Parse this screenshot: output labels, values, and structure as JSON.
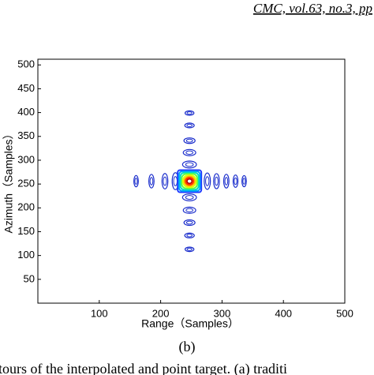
{
  "header": "CMC, vol.63, no.3, pp",
  "chart_data": {
    "type": "contour",
    "xlabel": "Range（Samples）",
    "ylabel": "Azimuth（Samples）",
    "xlim": [
      0,
      500
    ],
    "ylim": [
      0,
      512
    ],
    "xticks": [
      100,
      200,
      300,
      400,
      500
    ],
    "yticks": [
      50,
      100,
      150,
      200,
      250,
      300,
      350,
      400,
      450,
      500
    ],
    "mainlobe": {
      "x": 247,
      "y": 256,
      "colors": [
        "#1f3cff",
        "#00a0ff",
        "#00e0c0",
        "#60ff40",
        "#e0ff00",
        "#ffb000",
        "#ff3000",
        "#b00000"
      ]
    },
    "range_sidelobes": {
      "x": [
        160,
        185,
        207,
        224,
        276,
        291,
        307,
        322,
        336
      ],
      "y": [
        256,
        256,
        256,
        256,
        256,
        256,
        256,
        256,
        256
      ]
    },
    "azimuth_sidelobes": {
      "x": [
        247,
        247,
        247,
        247,
        247,
        247,
        247,
        247,
        247,
        247
      ],
      "y": [
        399,
        373,
        341,
        316,
        291,
        222,
        195,
        169,
        142,
        113
      ]
    },
    "sidelobe_color": "#1a2dcc"
  },
  "caption": "(b)",
  "body_text": "tours of the interpolated and point target. (a) traditi"
}
